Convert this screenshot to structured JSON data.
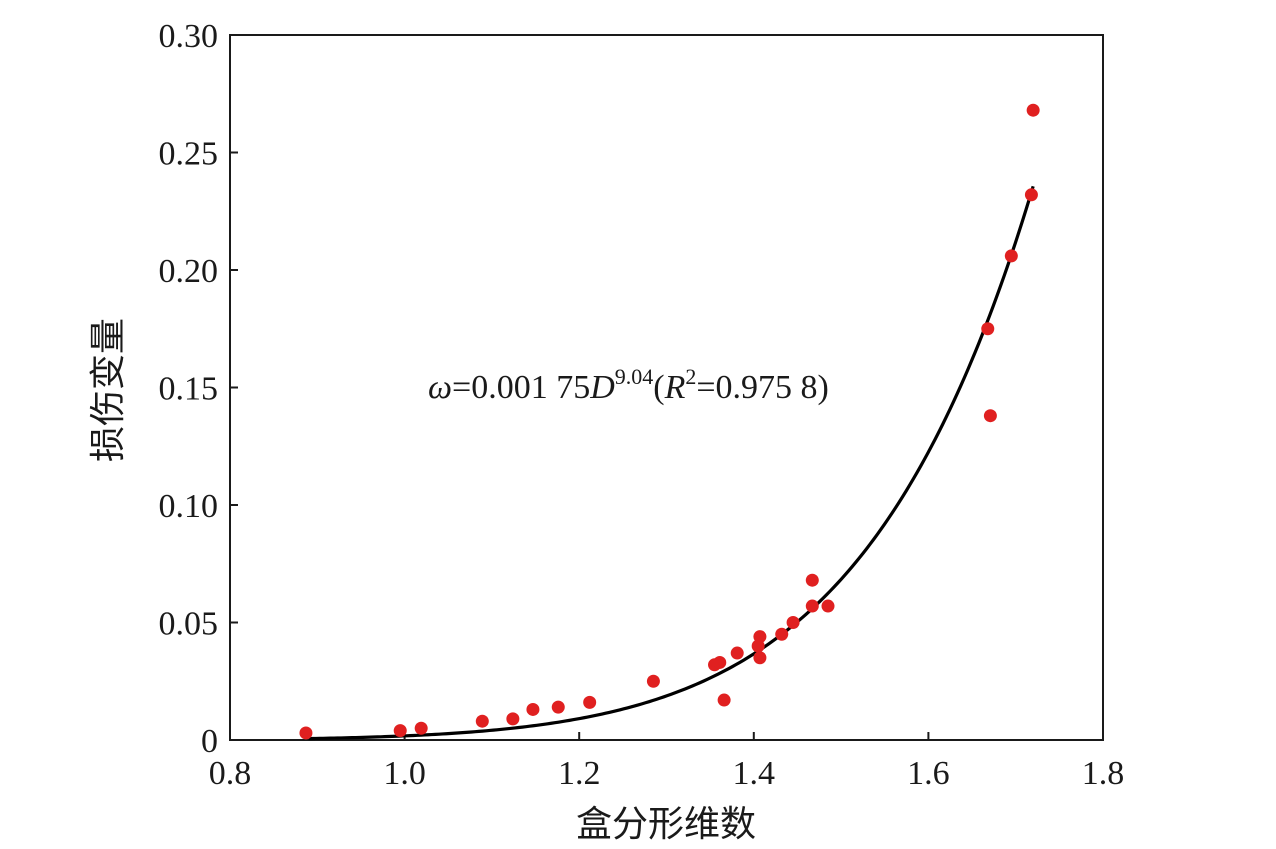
{
  "chart_data": {
    "type": "scatter",
    "xlabel": "盒分形维数",
    "ylabel": "损伤变量",
    "xlim": [
      0.8,
      1.8
    ],
    "ylim": [
      0,
      0.3
    ],
    "x_ticks": [
      "0.8",
      "1.0",
      "1.2",
      "1.4",
      "1.6",
      "1.8"
    ],
    "x_tick_values": [
      0.8,
      1.0,
      1.2,
      1.4,
      1.6,
      1.8
    ],
    "y_ticks": [
      "0",
      "0.05",
      "0.10",
      "0.15",
      "0.20",
      "0.25",
      "0.30"
    ],
    "y_tick_values": [
      0,
      0.05,
      0.1,
      0.15,
      0.2,
      0.25,
      0.3
    ],
    "grid": false,
    "point_color": "#e02020",
    "line_color": "#000000",
    "points": [
      {
        "x": 0.887,
        "y": 0.003
      },
      {
        "x": 0.995,
        "y": 0.004
      },
      {
        "x": 1.019,
        "y": 0.005
      },
      {
        "x": 1.089,
        "y": 0.008
      },
      {
        "x": 1.124,
        "y": 0.009
      },
      {
        "x": 1.147,
        "y": 0.013
      },
      {
        "x": 1.176,
        "y": 0.014
      },
      {
        "x": 1.212,
        "y": 0.016
      },
      {
        "x": 1.285,
        "y": 0.025
      },
      {
        "x": 1.355,
        "y": 0.032
      },
      {
        "x": 1.361,
        "y": 0.033
      },
      {
        "x": 1.366,
        "y": 0.017
      },
      {
        "x": 1.381,
        "y": 0.037
      },
      {
        "x": 1.405,
        "y": 0.04
      },
      {
        "x": 1.407,
        "y": 0.044
      },
      {
        "x": 1.407,
        "y": 0.035
      },
      {
        "x": 1.432,
        "y": 0.045
      },
      {
        "x": 1.445,
        "y": 0.05
      },
      {
        "x": 1.467,
        "y": 0.057
      },
      {
        "x": 1.467,
        "y": 0.068
      },
      {
        "x": 1.485,
        "y": 0.057
      },
      {
        "x": 1.668,
        "y": 0.175
      },
      {
        "x": 1.671,
        "y": 0.138
      },
      {
        "x": 1.695,
        "y": 0.206
      },
      {
        "x": 1.718,
        "y": 0.232
      },
      {
        "x": 1.72,
        "y": 0.268
      }
    ],
    "fit": {
      "coefficient": 0.00175,
      "exponent": 9.04,
      "r_squared": 0.9758,
      "x_range": [
        0.89,
        1.72
      ]
    },
    "annotation": {
      "omega": "ω",
      "coef": "=0.001 75",
      "var": "D",
      "exp": "9.04",
      "paren_open": "(",
      "r": "R",
      "r_exp": "2",
      "r_value": "=0.975 8)"
    }
  }
}
